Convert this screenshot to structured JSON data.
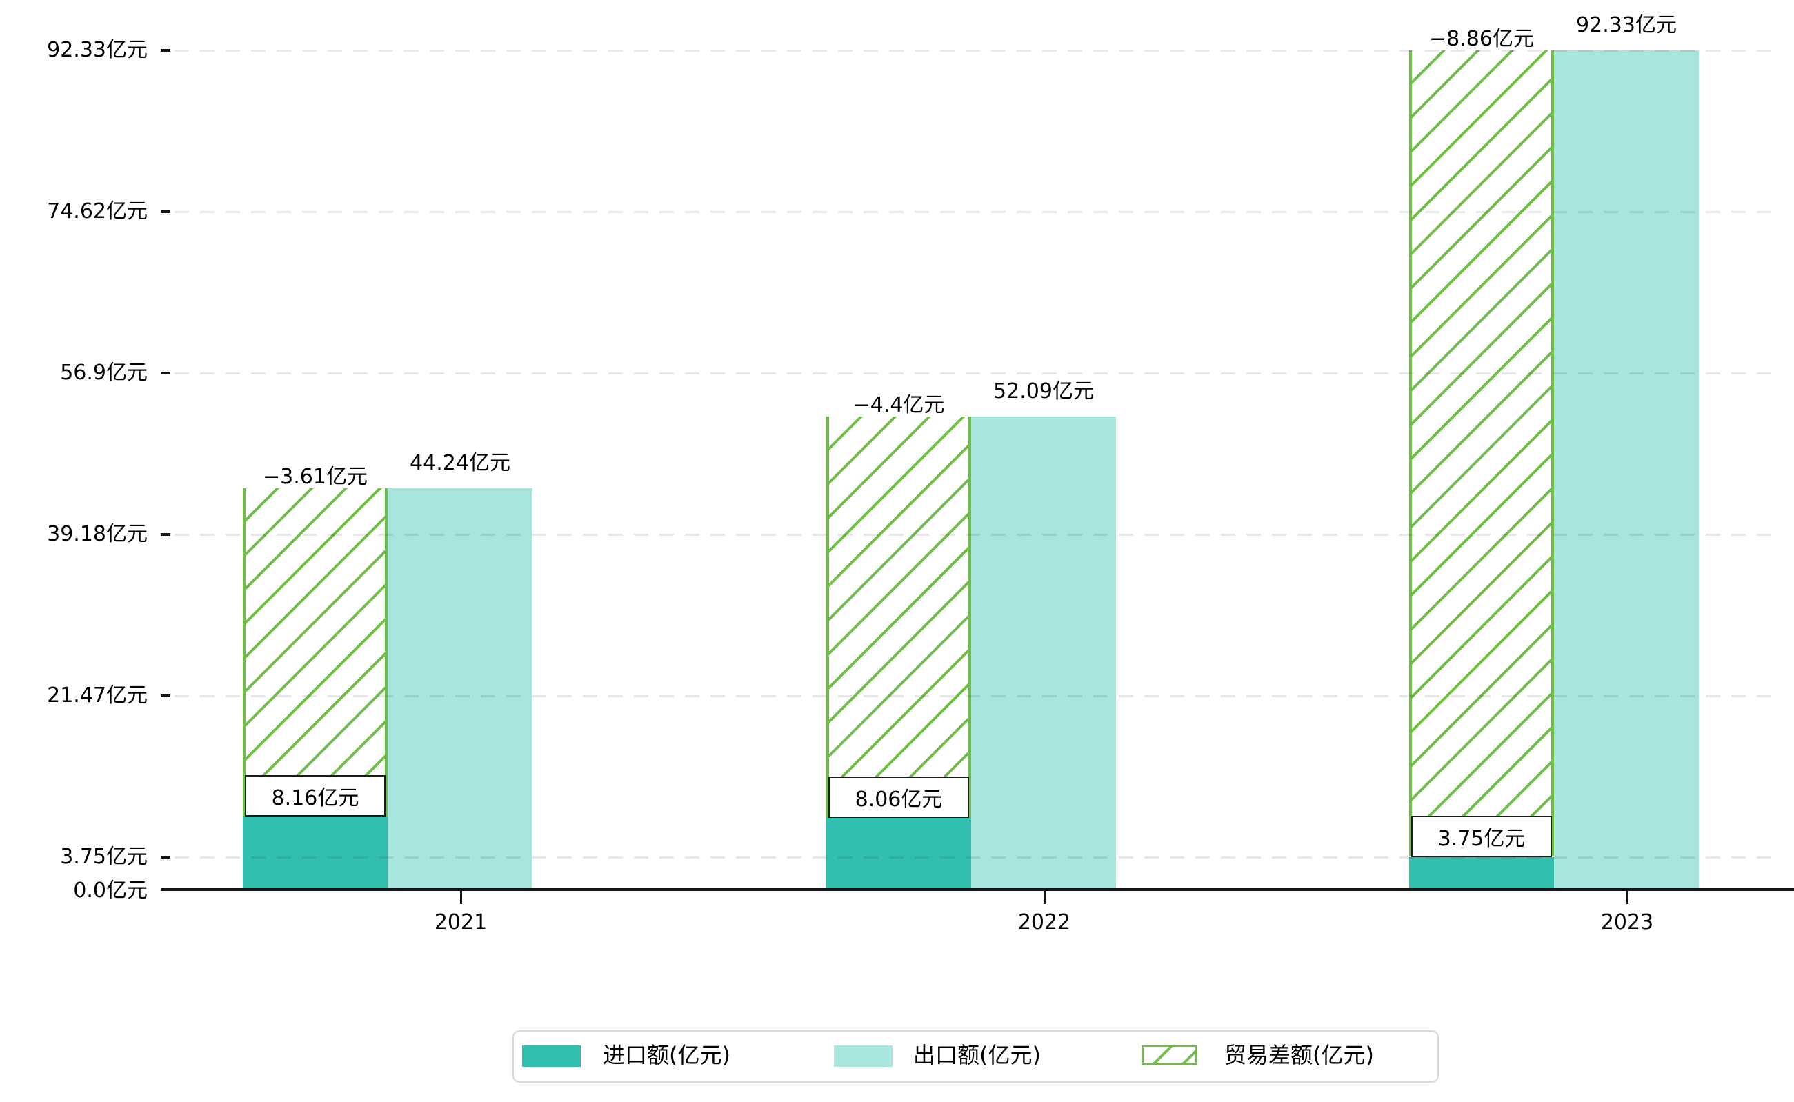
{
  "chart_data": {
    "type": "bar",
    "title": "",
    "unit": "亿元",
    "categories": [
      "2021",
      "2022",
      "2023"
    ],
    "series": [
      {
        "name": "进口额(亿元)",
        "swatch": "solid",
        "color": "#31bfb0",
        "values": [
          8.16,
          8.06,
          3.75
        ],
        "labels": [
          "8.16亿元",
          "8.06亿元",
          "3.75亿元"
        ],
        "label_style": "boxed-on-bar"
      },
      {
        "name": "出口额(亿元)",
        "swatch": "solid",
        "color": "#a8e5dc",
        "values": [
          44.24,
          52.09,
          92.33
        ],
        "labels": [
          "44.24亿元",
          "52.09亿元",
          "92.33亿元"
        ],
        "label_style": "above-bar"
      },
      {
        "name": "贸易差额(亿元)",
        "swatch": "hatched",
        "color": "#6ebe46",
        "values": [
          -3.61,
          -4.4,
          -8.86
        ],
        "labels": [
          "−3.61亿元",
          "−4.4亿元",
          "−8.86亿元"
        ],
        "label_style": "above-hatch",
        "render": "hatched overlay spanning from import top to export top on the import bar column"
      }
    ],
    "y_axis_ticks": [
      {
        "value": 0.0,
        "label": "0.0亿元"
      },
      {
        "value": 3.75,
        "label": "3.75亿元"
      },
      {
        "value": 21.47,
        "label": "21.47亿元"
      },
      {
        "value": 39.18,
        "label": "39.18亿元"
      },
      {
        "value": 56.9,
        "label": "56.9亿元"
      },
      {
        "value": 74.62,
        "label": "74.62亿元"
      },
      {
        "value": 92.33,
        "label": "92.33亿元"
      }
    ],
    "ylim": [
      0,
      92.33
    ],
    "grid": "horizontal-dashed",
    "legend_position": "bottom-center"
  },
  "colors": {
    "import_bar": "#31bfb0",
    "export_bar": "#a8e5dc",
    "hatch_green": "#6ebe46",
    "axis": "#151515",
    "grid_dash": "#e8e8e8",
    "legend_border": "#d9d9d9",
    "value_box_border": "#1b1b1b",
    "text": "#000000",
    "background": "#ffffff"
  }
}
